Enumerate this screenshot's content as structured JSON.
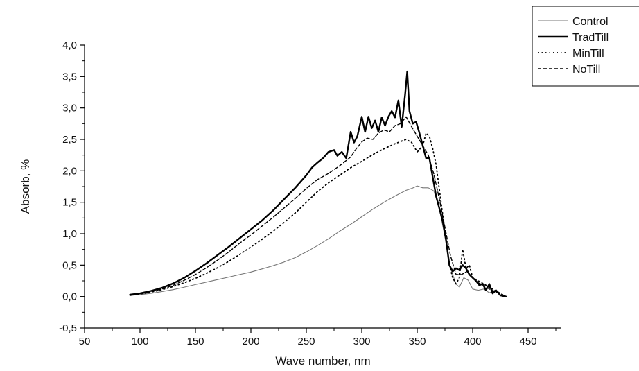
{
  "chart_data": {
    "type": "line",
    "xlabel": "Wave number, nm",
    "ylabel": "Absorb, %",
    "xlim": [
      50,
      480
    ],
    "ylim": [
      -0.5,
      4.0
    ],
    "x_ticks": [
      50,
      100,
      150,
      200,
      250,
      300,
      350,
      400,
      450
    ],
    "x_tick_labels": [
      "50",
      "100",
      "150",
      "200",
      "250",
      "300",
      "350",
      "400",
      "450"
    ],
    "y_ticks": [
      -0.5,
      0.0,
      0.5,
      1.0,
      1.5,
      2.0,
      2.5,
      3.0,
      3.5,
      4.0
    ],
    "y_tick_labels": [
      "-0,5",
      "0,0",
      "0,5",
      "1,0",
      "1,5",
      "2,0",
      "2,5",
      "3,0",
      "3,5",
      "4,0"
    ],
    "grid": false,
    "legend_position": "top-right",
    "series": [
      {
        "name": "Control",
        "style": "solid-thin",
        "color": "#777777",
        "x": [
          91,
          100,
          110,
          120,
          130,
          140,
          150,
          160,
          170,
          180,
          190,
          200,
          210,
          220,
          230,
          240,
          250,
          260,
          270,
          280,
          290,
          300,
          310,
          320,
          330,
          340,
          345,
          350,
          355,
          360,
          365,
          370,
          375,
          380,
          385,
          388,
          392,
          396,
          400,
          405,
          410,
          415,
          420,
          425,
          430
        ],
        "y": [
          0.02,
          0.03,
          0.05,
          0.08,
          0.11,
          0.15,
          0.19,
          0.23,
          0.27,
          0.31,
          0.35,
          0.39,
          0.44,
          0.49,
          0.55,
          0.62,
          0.71,
          0.81,
          0.92,
          1.04,
          1.15,
          1.27,
          1.39,
          1.5,
          1.6,
          1.69,
          1.72,
          1.76,
          1.73,
          1.73,
          1.68,
          1.4,
          0.95,
          0.45,
          0.2,
          0.15,
          0.3,
          0.26,
          0.12,
          0.1,
          0.12,
          0.06,
          0.1,
          0.02,
          0.0
        ]
      },
      {
        "name": "TradTill",
        "style": "solid-thick",
        "color": "#000000",
        "x": [
          91,
          100,
          110,
          120,
          130,
          140,
          150,
          160,
          170,
          180,
          190,
          200,
          210,
          220,
          230,
          240,
          250,
          255,
          260,
          265,
          270,
          275,
          278,
          282,
          286,
          290,
          293,
          296,
          300,
          303,
          306,
          309,
          312,
          315,
          318,
          321,
          324,
          327,
          330,
          333,
          336,
          339,
          341,
          343,
          346,
          349,
          352,
          355,
          358,
          361,
          364,
          367,
          370,
          373,
          376,
          379,
          382,
          385,
          388,
          391,
          394,
          397,
          400,
          403,
          406,
          409,
          412,
          415,
          418,
          421,
          425,
          430
        ],
        "y": [
          0.03,
          0.05,
          0.09,
          0.14,
          0.21,
          0.3,
          0.41,
          0.53,
          0.66,
          0.79,
          0.93,
          1.07,
          1.21,
          1.37,
          1.55,
          1.73,
          1.93,
          2.05,
          2.13,
          2.2,
          2.3,
          2.33,
          2.24,
          2.3,
          2.2,
          2.62,
          2.45,
          2.55,
          2.86,
          2.62,
          2.86,
          2.68,
          2.8,
          2.62,
          2.85,
          2.72,
          2.86,
          2.95,
          2.85,
          3.12,
          2.7,
          3.2,
          3.58,
          2.95,
          2.75,
          2.78,
          2.6,
          2.4,
          2.2,
          2.2,
          1.9,
          1.6,
          1.4,
          1.2,
          0.9,
          0.5,
          0.4,
          0.45,
          0.42,
          0.5,
          0.45,
          0.35,
          0.3,
          0.25,
          0.18,
          0.2,
          0.1,
          0.2,
          0.05,
          0.1,
          0.02,
          0.0
        ]
      },
      {
        "name": "MinTill",
        "style": "dotted",
        "color": "#000000",
        "x": [
          91,
          100,
          110,
          120,
          130,
          140,
          150,
          160,
          170,
          180,
          190,
          200,
          210,
          220,
          230,
          240,
          250,
          260,
          270,
          280,
          290,
          300,
          310,
          320,
          330,
          340,
          345,
          350,
          355,
          358,
          361,
          364,
          367,
          370,
          373,
          376,
          379,
          382,
          385,
          388,
          391,
          394,
          397,
          400,
          405,
          410,
          415,
          420,
          425,
          430
        ],
        "y": [
          0.02,
          0.04,
          0.07,
          0.11,
          0.16,
          0.22,
          0.29,
          0.37,
          0.46,
          0.56,
          0.67,
          0.79,
          0.91,
          1.04,
          1.18,
          1.33,
          1.5,
          1.67,
          1.81,
          1.93,
          2.05,
          2.15,
          2.26,
          2.35,
          2.43,
          2.5,
          2.45,
          2.3,
          2.4,
          2.6,
          2.55,
          2.35,
          2.1,
          1.7,
          1.3,
          0.9,
          0.5,
          0.3,
          0.2,
          0.3,
          0.75,
          0.45,
          0.5,
          0.3,
          0.25,
          0.2,
          0.15,
          0.1,
          0.05,
          0.0
        ]
      },
      {
        "name": "NoTill",
        "style": "dashed",
        "color": "#000000",
        "x": [
          91,
          100,
          110,
          120,
          130,
          140,
          150,
          160,
          170,
          180,
          190,
          200,
          210,
          220,
          230,
          240,
          250,
          260,
          270,
          280,
          290,
          295,
          300,
          305,
          310,
          315,
          320,
          325,
          330,
          335,
          340,
          345,
          350,
          355,
          360,
          365,
          370,
          375,
          380,
          385,
          390,
          395,
          400,
          405,
          410,
          415,
          420,
          425,
          430
        ],
        "y": [
          0.02,
          0.04,
          0.08,
          0.12,
          0.18,
          0.26,
          0.35,
          0.46,
          0.58,
          0.71,
          0.85,
          0.98,
          1.12,
          1.26,
          1.41,
          1.56,
          1.72,
          1.86,
          1.96,
          2.08,
          2.22,
          2.35,
          2.46,
          2.52,
          2.5,
          2.6,
          2.65,
          2.62,
          2.72,
          2.75,
          2.86,
          2.7,
          2.55,
          2.4,
          2.25,
          1.95,
          1.55,
          1.1,
          0.65,
          0.35,
          0.35,
          0.4,
          0.3,
          0.22,
          0.18,
          0.12,
          0.08,
          0.04,
          0.0
        ]
      }
    ]
  }
}
